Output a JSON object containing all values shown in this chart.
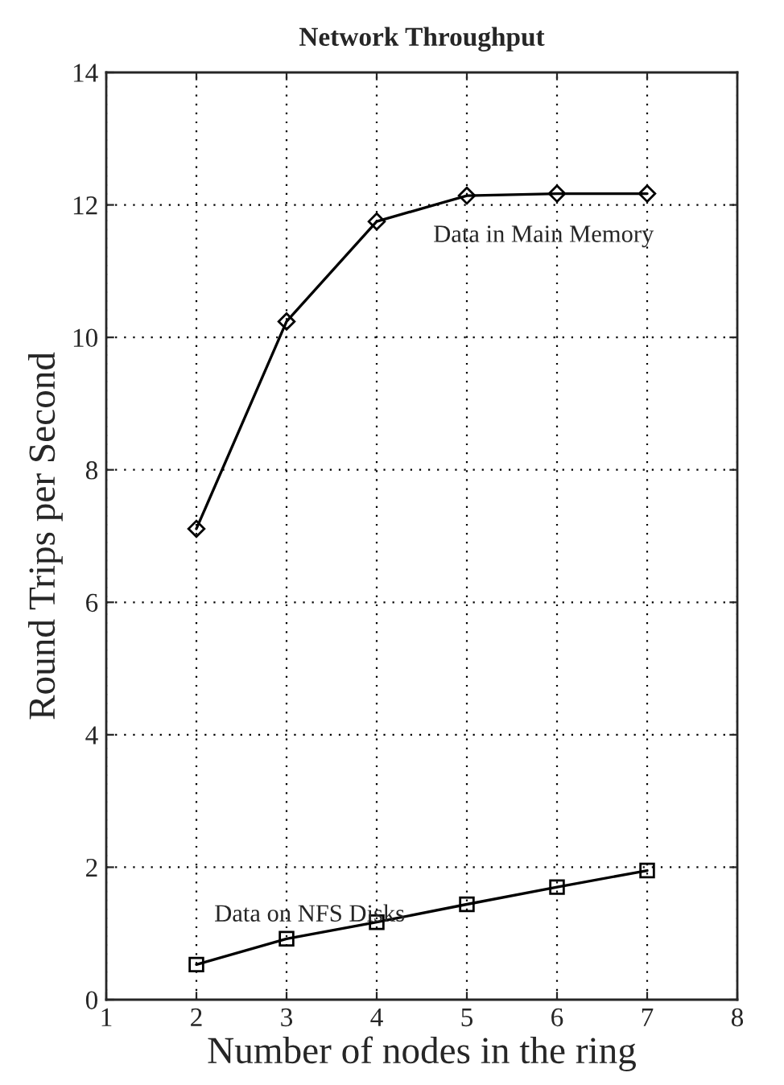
{
  "chart_data": {
    "type": "line",
    "title": "Network Throughput",
    "xlabel": "Number of nodes in the ring",
    "ylabel": "Round Trips per Second",
    "x": [
      2,
      3,
      4,
      5,
      6,
      7
    ],
    "series": [
      {
        "name": "Data in Main Memory",
        "color": "#000000",
        "marker": "diamond",
        "values": [
          7.11,
          10.24,
          11.75,
          12.14,
          12.17,
          12.17
        ]
      },
      {
        "name": "Data on NFS Disks",
        "color": "#000000",
        "marker": "square",
        "values": [
          0.53,
          0.92,
          1.17,
          1.44,
          1.7,
          1.95
        ]
      }
    ],
    "xlim": [
      1,
      8
    ],
    "xticks": [
      1,
      2,
      3,
      4,
      5,
      6,
      7,
      8
    ],
    "ylim": [
      0,
      14
    ],
    "yticks": [
      0,
      2,
      4,
      6,
      8,
      10,
      12,
      14
    ],
    "grid": true,
    "line_style": "solid"
  }
}
